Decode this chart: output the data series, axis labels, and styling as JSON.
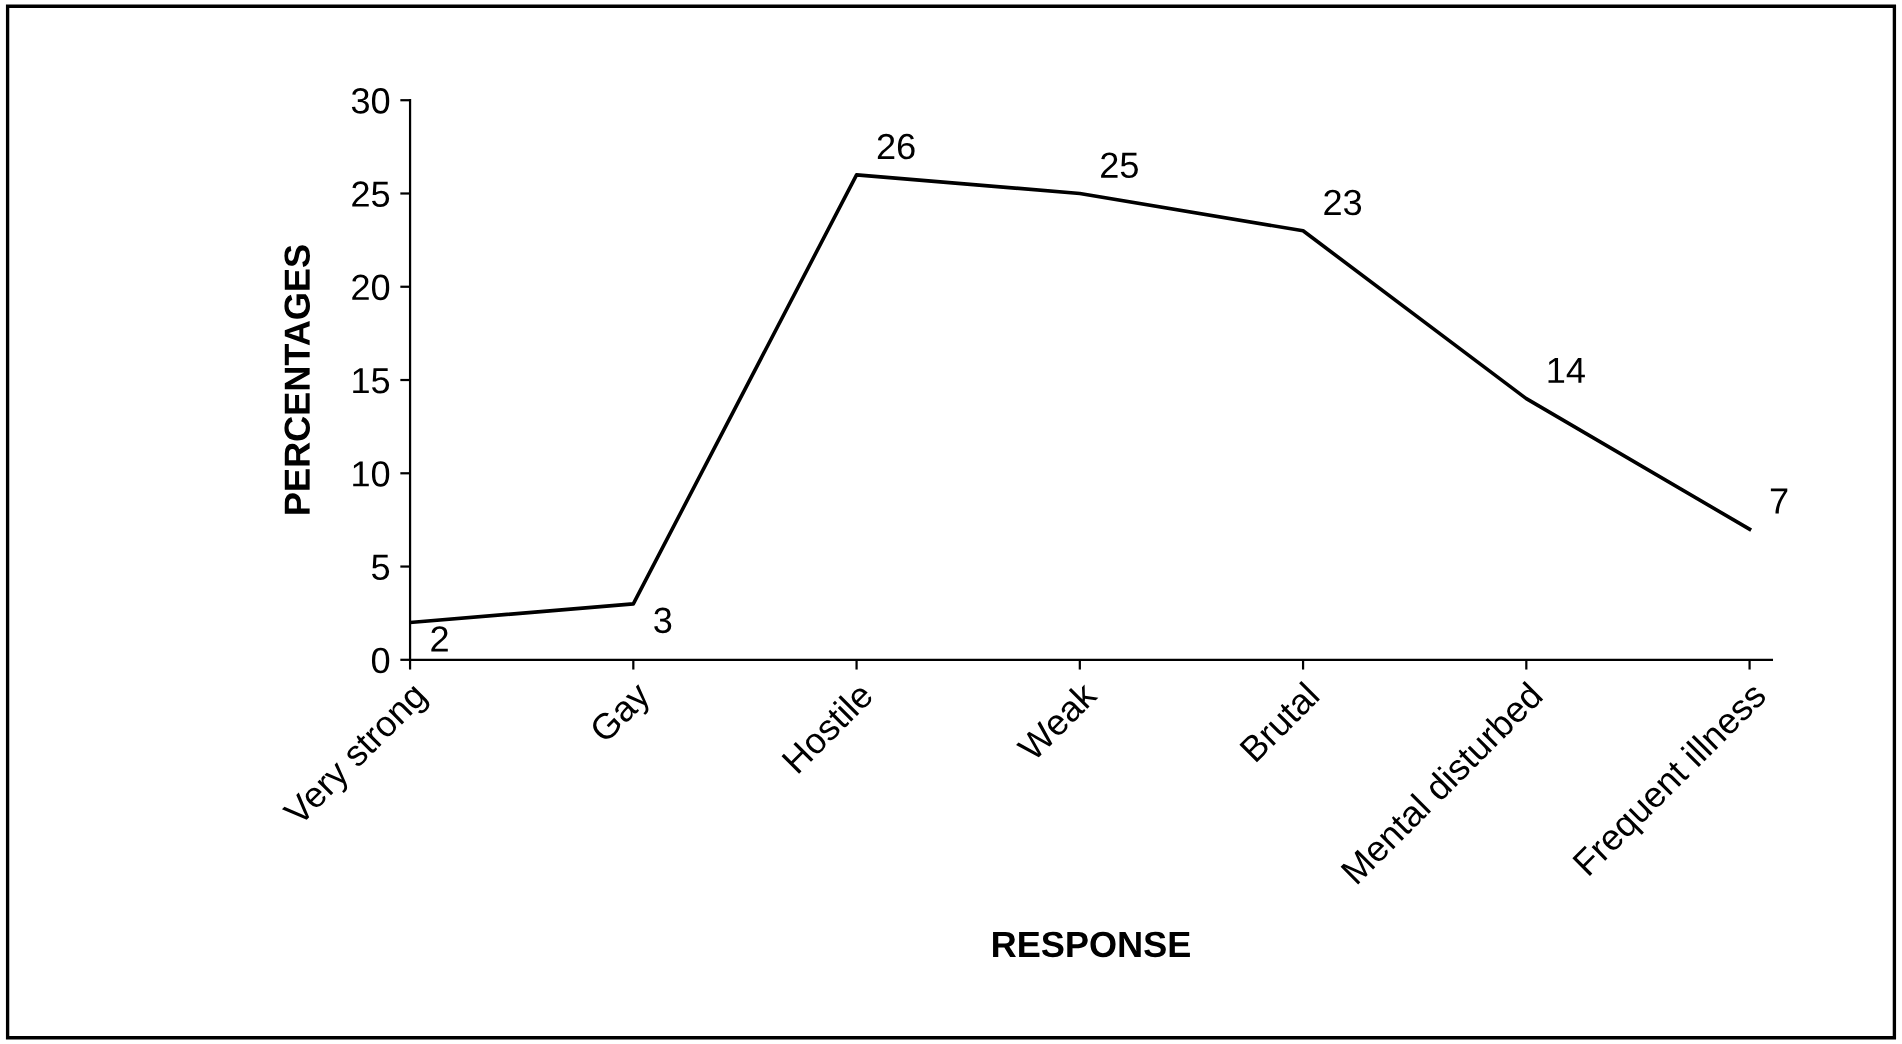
{
  "chart_data": {
    "type": "line",
    "xlabel": "RESPONSE",
    "ylabel": "PERCENTAGES",
    "categories": [
      "Very strong",
      "Gay",
      "Hostile",
      "Weak",
      "Brutal",
      "Mental disturbed",
      "Frequent illness"
    ],
    "series": [
      {
        "color": "#000000",
        "values": [
          2,
          3,
          26,
          25,
          23,
          14,
          7
        ]
      }
    ],
    "ylim": [
      0,
      30
    ],
    "yticks": [
      0,
      5,
      10,
      15,
      20,
      25,
      30
    ],
    "data_labels": true,
    "grid": false,
    "legend": false,
    "marker": "none",
    "line_style": "solid"
  }
}
